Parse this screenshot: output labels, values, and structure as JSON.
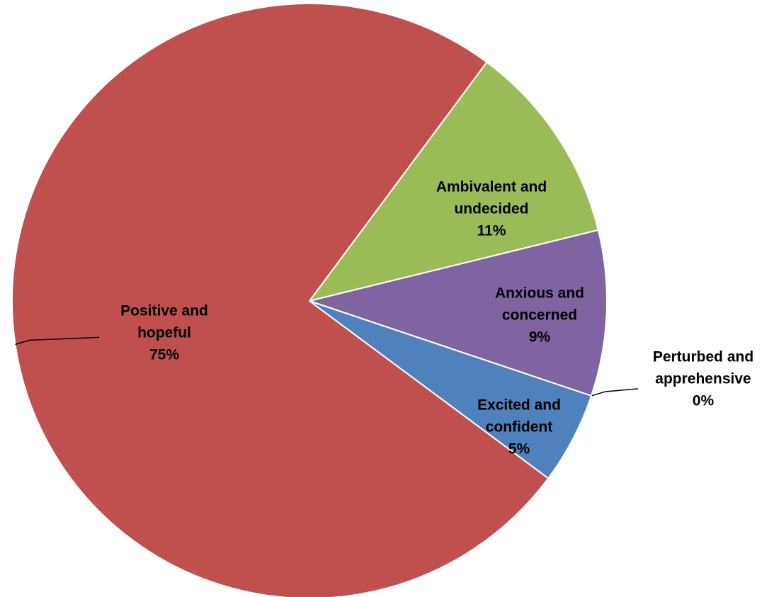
{
  "chart_data": {
    "type": "pie",
    "categories": [
      "Ambivalent and undecided",
      "Anxious and concerned",
      "Perturbed and apprehensive",
      "Excited and confident",
      "Positive and hopeful"
    ],
    "values": [
      11,
      9,
      0,
      5,
      75
    ],
    "value_labels": [
      "11%",
      "9%",
      "0%",
      "5%",
      "75%"
    ],
    "colors": [
      "#9BBB59",
      "#8064A2",
      "#F79646",
      "#4F81BD",
      "#C0504D"
    ]
  }
}
